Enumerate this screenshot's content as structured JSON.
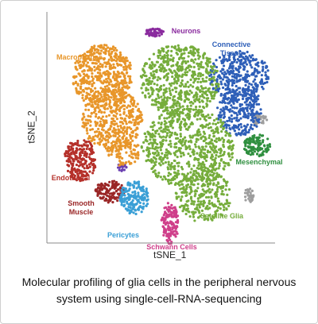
{
  "figure": {
    "x_label": "tSNE_1",
    "y_label": "tSNE_2",
    "clusters": [
      {
        "label": "Neurons",
        "color": "#8a2b9e"
      },
      {
        "label": "Macrophages",
        "color": "#e8962a"
      },
      {
        "label": "Connective Tissue",
        "color": "#2e5fb8"
      },
      {
        "label": "Mesenchymal",
        "color": "#2f8f3f"
      },
      {
        "label": "Endothelial",
        "color": "#b5302a"
      },
      {
        "label": "Smooth Muscle",
        "color": "#9a2626"
      },
      {
        "label": "Pericytes",
        "color": "#3a9fd6"
      },
      {
        "label": "Schwann Cells",
        "color": "#cf3f8a"
      },
      {
        "label": "Satellite Glia",
        "color": "#76ad3c"
      }
    ]
  },
  "caption": "Molecular profiling of glia cells in the peripheral nervous system using single-cell-RNA-sequencing"
}
